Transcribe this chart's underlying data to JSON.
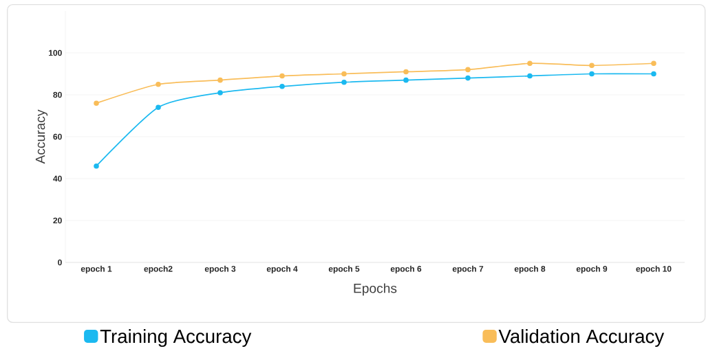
{
  "chart_data": {
    "type": "line",
    "xlabel": "Epochs",
    "ylabel": "Accuracy",
    "categories": [
      "epoch 1",
      "epoch2",
      "epoch 3",
      "epoch 4",
      "epoch 5",
      "epoch 6",
      "epoch 7",
      "epoch 8",
      "epoch 9",
      "epoch 10"
    ],
    "series": [
      {
        "name": "Training Accuracy",
        "color": "#1bb9f0",
        "values": [
          46,
          74,
          81,
          84,
          86,
          87,
          88,
          89,
          90,
          90
        ]
      },
      {
        "name": "Validation Accuracy",
        "color": "#f9bd59",
        "values": [
          76,
          85,
          87,
          89,
          90,
          91,
          92,
          95,
          94,
          95
        ]
      }
    ],
    "ylim": [
      0,
      120
    ],
    "yticks": [
      0,
      20,
      40,
      60,
      80,
      100
    ],
    "grid": "y",
    "legend": "bottom",
    "marker": "circle",
    "line_style": "solid"
  }
}
